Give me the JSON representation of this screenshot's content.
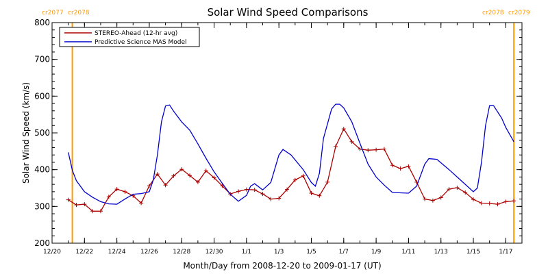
{
  "chart_data": {
    "type": "line",
    "title": "Solar Wind Speed Comparisons",
    "xlabel": "Month/Day from 2008-12-20 to 2009-01-17 (UT)",
    "ylabel": "Solar Wind Speed (km/s)",
    "xlim": [
      "2008-12-20",
      "2009-01-18"
    ],
    "ylim": [
      200,
      800
    ],
    "x_ticks": [
      {
        "date": "2008-12-20",
        "label": "12/20"
      },
      {
        "date": "2008-12-22",
        "label": "12/22"
      },
      {
        "date": "2008-12-24",
        "label": "12/24"
      },
      {
        "date": "2008-12-26",
        "label": "12/26"
      },
      {
        "date": "2008-12-28",
        "label": "12/28"
      },
      {
        "date": "2008-12-30",
        "label": "12/30"
      },
      {
        "date": "2009-01-01",
        "label": "1/1"
      },
      {
        "date": "2009-01-03",
        "label": "1/3"
      },
      {
        "date": "2009-01-05",
        "label": "1/5"
      },
      {
        "date": "2009-01-07",
        "label": "1/7"
      },
      {
        "date": "2009-01-09",
        "label": "1/9"
      },
      {
        "date": "2009-01-11",
        "label": "1/11"
      },
      {
        "date": "2009-01-13",
        "label": "1/13"
      },
      {
        "date": "2009-01-15",
        "label": "1/15"
      },
      {
        "date": "2009-01-17",
        "label": "1/17"
      }
    ],
    "y_ticks": [
      200,
      300,
      400,
      500,
      600,
      700,
      800
    ],
    "legend_position": "top-left",
    "carrington_markers": [
      {
        "date": "2008-12-21 06:00",
        "left_label": "cr2077",
        "right_label": "cr2078",
        "label_side": "left",
        "color": "#ff9900"
      },
      {
        "date": "2009-01-17 12:00",
        "left_label": "cr2078",
        "right_label": "cr2079",
        "label_side": "right",
        "color": "#ff9900"
      }
    ],
    "series": [
      {
        "name": "STEREO-Ahead (12-hr avg)",
        "color": "#aa0000",
        "marker": "plus",
        "points": [
          [
            "2008-12-21 00:00",
            318
          ],
          [
            "2008-12-21 12:00",
            304
          ],
          [
            "2008-12-22 00:00",
            306
          ],
          [
            "2008-12-22 12:00",
            287
          ],
          [
            "2008-12-23 00:00",
            287
          ],
          [
            "2008-12-23 12:00",
            326
          ],
          [
            "2008-12-24 00:00",
            347
          ],
          [
            "2008-12-24 12:00",
            340
          ],
          [
            "2008-12-25 00:00",
            329
          ],
          [
            "2008-12-25 12:00",
            309
          ],
          [
            "2008-12-26 00:00",
            356
          ],
          [
            "2008-12-26 12:00",
            388
          ],
          [
            "2008-12-27 00:00",
            358
          ],
          [
            "2008-12-27 12:00",
            383
          ],
          [
            "2008-12-28 00:00",
            401
          ],
          [
            "2008-12-28 12:00",
            384
          ],
          [
            "2008-12-29 00:00",
            366
          ],
          [
            "2008-12-29 12:00",
            397
          ],
          [
            "2008-12-30 00:00",
            378
          ],
          [
            "2008-12-30 12:00",
            356
          ],
          [
            "2008-12-31 00:00",
            334
          ],
          [
            "2008-12-31 12:00",
            341
          ],
          [
            "2009-01-01 00:00",
            346
          ],
          [
            "2009-01-01 12:00",
            345
          ],
          [
            "2009-01-02 00:00",
            334
          ],
          [
            "2009-01-02 12:00",
            320
          ],
          [
            "2009-01-03 00:00",
            322
          ],
          [
            "2009-01-03 12:00",
            346
          ],
          [
            "2009-01-04 00:00",
            372
          ],
          [
            "2009-01-04 12:00",
            383
          ],
          [
            "2009-01-05 00:00",
            336
          ],
          [
            "2009-01-05 12:00",
            329
          ],
          [
            "2009-01-06 00:00",
            366
          ],
          [
            "2009-01-06 12:00",
            463
          ],
          [
            "2009-01-07 00:00",
            511
          ],
          [
            "2009-01-07 12:00",
            476
          ],
          [
            "2009-01-08 00:00",
            456
          ],
          [
            "2009-01-08 12:00",
            453
          ],
          [
            "2009-01-09 00:00",
            454
          ],
          [
            "2009-01-09 12:00",
            456
          ],
          [
            "2009-01-10 00:00",
            412
          ],
          [
            "2009-01-10 12:00",
            403
          ],
          [
            "2009-01-11 00:00",
            409
          ],
          [
            "2009-01-11 12:00",
            366
          ],
          [
            "2009-01-12 00:00",
            320
          ],
          [
            "2009-01-12 12:00",
            316
          ],
          [
            "2009-01-13 00:00",
            324
          ],
          [
            "2009-01-13 12:00",
            347
          ],
          [
            "2009-01-14 00:00",
            351
          ],
          [
            "2009-01-14 12:00",
            338
          ],
          [
            "2009-01-15 00:00",
            319
          ],
          [
            "2009-01-15 12:00",
            309
          ],
          [
            "2009-01-16 00:00",
            308
          ],
          [
            "2009-01-16 12:00",
            306
          ],
          [
            "2009-01-17 00:00",
            313
          ],
          [
            "2009-01-17 12:00",
            315
          ]
        ]
      },
      {
        "name": "Predictive Science MAS Model",
        "color": "#0000cc",
        "marker": "none",
        "points": [
          [
            "2008-12-21 00:00",
            447
          ],
          [
            "2008-12-21 06:00",
            398
          ],
          [
            "2008-12-21 12:00",
            370
          ],
          [
            "2008-12-22 00:00",
            340
          ],
          [
            "2008-12-22 12:00",
            325
          ],
          [
            "2008-12-23 00:00",
            313
          ],
          [
            "2008-12-23 12:00",
            307
          ],
          [
            "2008-12-24 00:00",
            306
          ],
          [
            "2008-12-24 12:00",
            320
          ],
          [
            "2008-12-25 00:00",
            333
          ],
          [
            "2008-12-25 12:00",
            335
          ],
          [
            "2008-12-26 00:00",
            340
          ],
          [
            "2008-12-26 06:00",
            372
          ],
          [
            "2008-12-26 12:00",
            440
          ],
          [
            "2008-12-26 18:00",
            530
          ],
          [
            "2008-12-27 00:00",
            573
          ],
          [
            "2008-12-27 06:00",
            576
          ],
          [
            "2008-12-27 12:00",
            559
          ],
          [
            "2008-12-28 00:00",
            530
          ],
          [
            "2008-12-28 12:00",
            507
          ],
          [
            "2008-12-29 00:00",
            470
          ],
          [
            "2008-12-29 12:00",
            431
          ],
          [
            "2008-12-30 00:00",
            394
          ],
          [
            "2008-12-30 12:00",
            363
          ],
          [
            "2008-12-31 00:00",
            333
          ],
          [
            "2008-12-31 12:00",
            314
          ],
          [
            "2009-01-01 00:00",
            330
          ],
          [
            "2009-01-01 06:00",
            355
          ],
          [
            "2009-01-01 12:00",
            362
          ],
          [
            "2009-01-02 00:00",
            345
          ],
          [
            "2009-01-02 12:00",
            365
          ],
          [
            "2009-01-03 00:00",
            440
          ],
          [
            "2009-01-03 06:00",
            455
          ],
          [
            "2009-01-03 18:00",
            440
          ],
          [
            "2009-01-04 12:00",
            400
          ],
          [
            "2009-01-05 00:00",
            365
          ],
          [
            "2009-01-05 06:00",
            355
          ],
          [
            "2009-01-05 12:00",
            390
          ],
          [
            "2009-01-05 18:00",
            485
          ],
          [
            "2009-01-06 06:00",
            565
          ],
          [
            "2009-01-06 12:00",
            578
          ],
          [
            "2009-01-06 18:00",
            578
          ],
          [
            "2009-01-07 00:00",
            568
          ],
          [
            "2009-01-07 12:00",
            530
          ],
          [
            "2009-01-08 00:00",
            472
          ],
          [
            "2009-01-08 12:00",
            415
          ],
          [
            "2009-01-09 00:00",
            380
          ],
          [
            "2009-01-09 12:00",
            358
          ],
          [
            "2009-01-10 00:00",
            338
          ],
          [
            "2009-01-10 12:00",
            337
          ],
          [
            "2009-01-11 00:00",
            336
          ],
          [
            "2009-01-11 12:00",
            355
          ],
          [
            "2009-01-12 00:00",
            415
          ],
          [
            "2009-01-12 06:00",
            430
          ],
          [
            "2009-01-12 18:00",
            428
          ],
          [
            "2009-01-13 12:00",
            400
          ],
          [
            "2009-01-14 00:00",
            380
          ],
          [
            "2009-01-14 12:00",
            360
          ],
          [
            "2009-01-15 00:00",
            340
          ],
          [
            "2009-01-15 06:00",
            350
          ],
          [
            "2009-01-15 12:00",
            420
          ],
          [
            "2009-01-15 18:00",
            520
          ],
          [
            "2009-01-16 00:00",
            574
          ],
          [
            "2009-01-16 06:00",
            574
          ],
          [
            "2009-01-16 18:00",
            540
          ],
          [
            "2009-01-17 00:00",
            515
          ],
          [
            "2009-01-17 12:00",
            476
          ]
        ]
      }
    ]
  }
}
